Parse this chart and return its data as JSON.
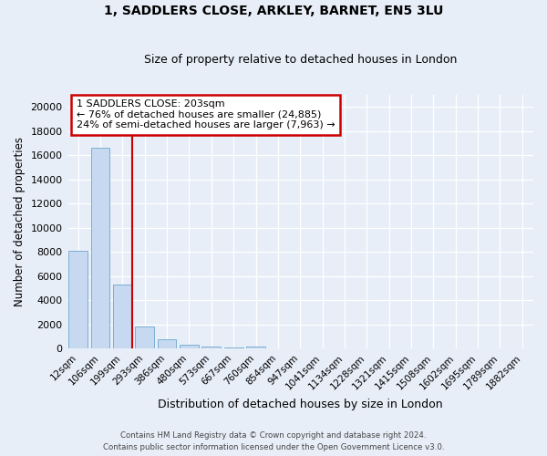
{
  "title1": "1, SADDLERS CLOSE, ARKLEY, BARNET, EN5 3LU",
  "title2": "Size of property relative to detached houses in London",
  "xlabel": "Distribution of detached houses by size in London",
  "ylabel": "Number of detached properties",
  "categories": [
    "12sqm",
    "106sqm",
    "199sqm",
    "293sqm",
    "386sqm",
    "480sqm",
    "573sqm",
    "667sqm",
    "760sqm",
    "854sqm",
    "947sqm",
    "1041sqm",
    "1134sqm",
    "1228sqm",
    "1321sqm",
    "1415sqm",
    "1508sqm",
    "1602sqm",
    "1695sqm",
    "1789sqm",
    "1882sqm"
  ],
  "values": [
    8100,
    16600,
    5300,
    1800,
    750,
    310,
    190,
    130,
    140,
    0,
    0,
    0,
    0,
    0,
    0,
    0,
    0,
    0,
    0,
    0,
    0
  ],
  "bar_color": "#c6d9f0",
  "bar_edge_color": "#7bafd4",
  "vline_x_index": 2,
  "vline_color": "#cc0000",
  "annotation_line1": "1 SADDLERS CLOSE: 203sqm",
  "annotation_line2": "← 76% of detached houses are smaller (24,885)",
  "annotation_line3": "24% of semi-detached houses are larger (7,963) →",
  "annotation_box_color": "#cc0000",
  "annotation_bg_color": "#ffffff",
  "ylim": [
    0,
    21000
  ],
  "yticks": [
    0,
    2000,
    4000,
    6000,
    8000,
    10000,
    12000,
    14000,
    16000,
    18000,
    20000
  ],
  "footer1": "Contains HM Land Registry data © Crown copyright and database right 2024.",
  "footer2": "Contains public sector information licensed under the Open Government Licence v3.0.",
  "bg_color": "#e8eef8",
  "plot_bg_color": "#e8eef8",
  "grid_color": "#ffffff"
}
